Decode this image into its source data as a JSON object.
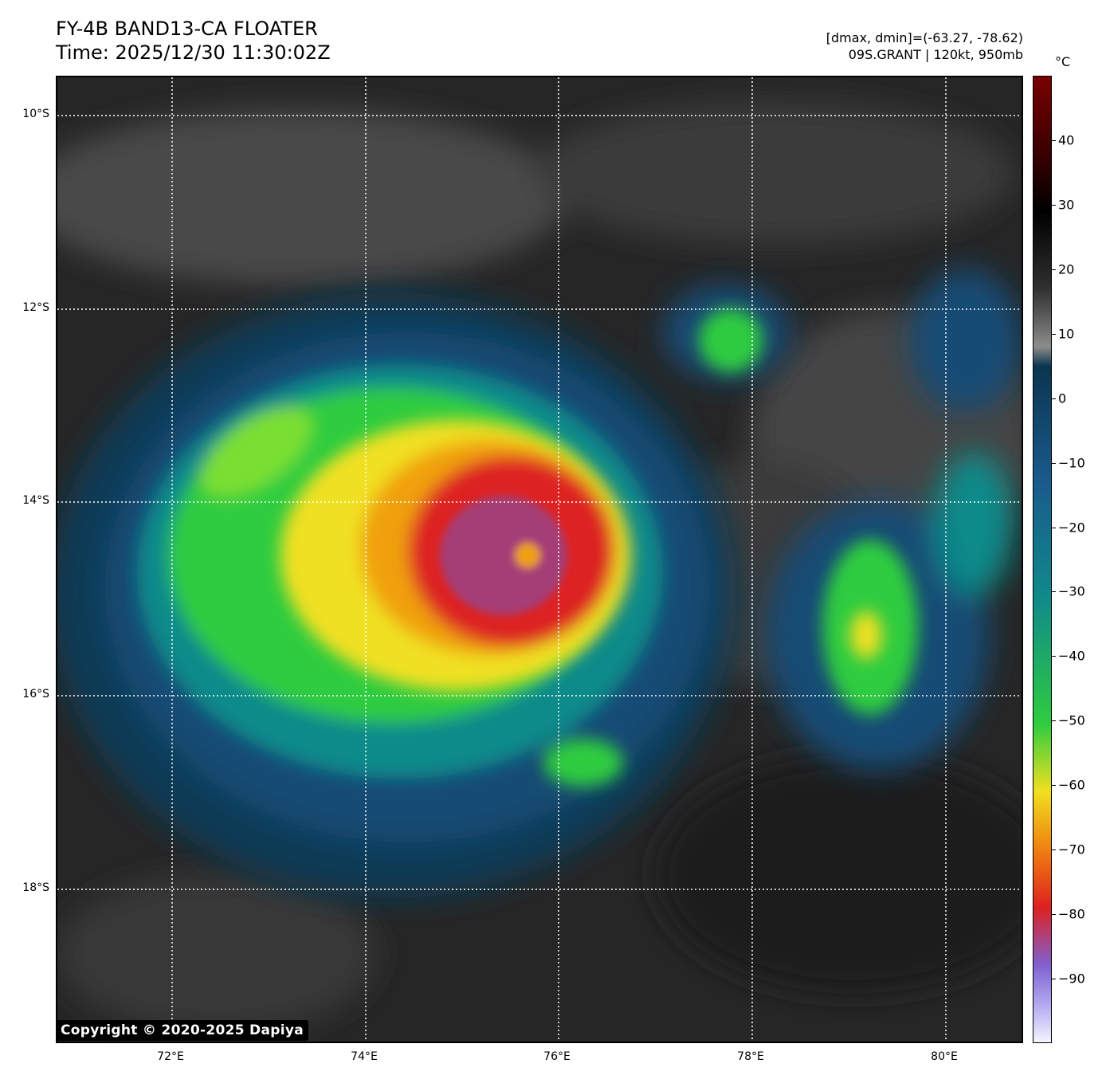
{
  "header": {
    "title_line1": "FY-4B BAND13-CA FLOATER",
    "title_line2": "Time: 2025/12/30 11:30:02Z",
    "info_line1": "[dmax, dmin]=(-63.27, -78.62)",
    "info_line2": "09S.GRANT | 120kt, 950mb"
  },
  "map": {
    "lat_labels": [
      "10°S",
      "12°S",
      "14°S",
      "16°S",
      "18°S"
    ],
    "lon_labels": [
      "72°E",
      "74°E",
      "76°E",
      "78°E",
      "80°E"
    ],
    "copyright": "Copyright © 2020-2025 Dapiya",
    "grid_style": "dotted white",
    "storm_center": {
      "lat": "14.6°S",
      "lon": "75.7°E"
    }
  },
  "colorbar": {
    "unit": "°C",
    "tick_labels": [
      "40",
      "30",
      "20",
      "10",
      "0",
      "−10",
      "−20",
      "−30",
      "−40",
      "−50",
      "−60",
      "−70",
      "−80",
      "−90"
    ],
    "range": [
      -100,
      50
    ],
    "colors": {
      "warm_top": "#7a0000",
      "black": "#000000",
      "gray": "#8c8c8c",
      "dark_blue": "#0a3550",
      "mid_blue": "#1a5a8c",
      "teal": "#0f8a8a",
      "green": "#2ecc40",
      "yellow": "#f0e020",
      "orange": "#f08010",
      "red": "#dd2020",
      "purple": "#8060d0",
      "light": "#f4f4ff"
    }
  }
}
